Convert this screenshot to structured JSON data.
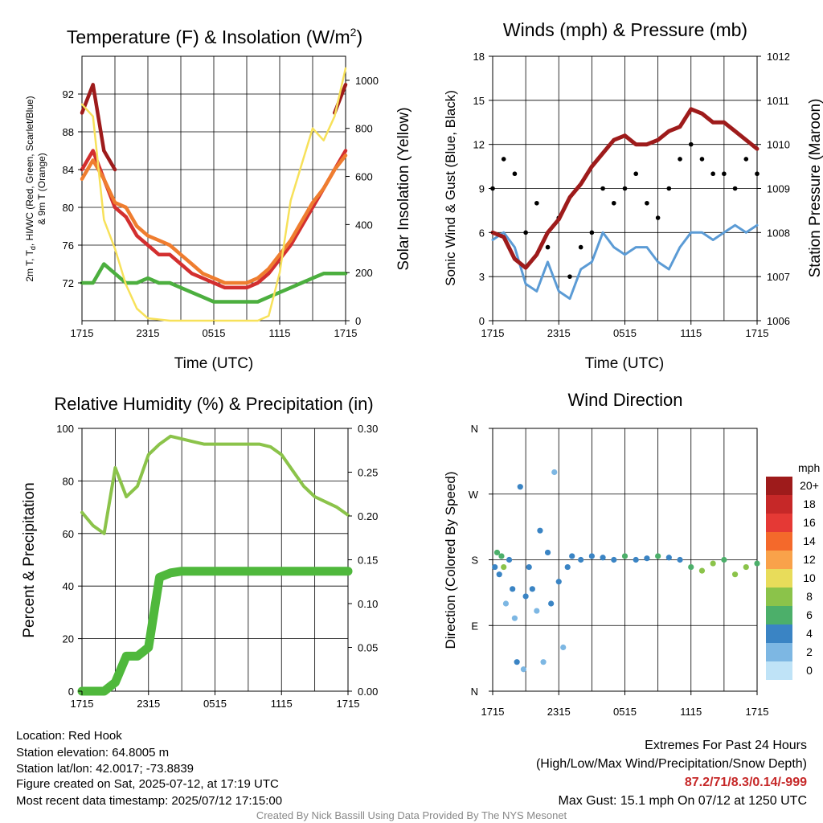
{
  "colors": {
    "maroon": "#9e1b1b",
    "red": "#d32f2f",
    "green": "#4caf3f",
    "orange": "#ef7d2f",
    "yellow": "#f7e15a",
    "blue": "#5b9bd5",
    "black": "#000000",
    "rh_green": "#8bc34a",
    "precip_green": "#4fb83c"
  },
  "x_ticks": [
    "1715",
    "2315",
    "0515",
    "1115",
    "1715"
  ],
  "temp_panel": {
    "title": "Temperature (F) & Insolation (W/m",
    "title_sup": "2",
    "title_close": ")",
    "ylabel_line1": "2m T, T",
    "ylabel_sub": "d",
    "ylabel_line1_rest": ", HI/WC (Red, Green, Scarlet/Blue)",
    "ylabel_line2": "& 9m T (Orange)",
    "y2label": "Solar Insolation (Yellow)",
    "xlabel": "Time (UTC)",
    "y_ticks": [
      "92",
      "88",
      "84",
      "80",
      "76",
      "72"
    ],
    "y2_ticks": [
      "1000",
      "800",
      "600",
      "400",
      "200",
      "0"
    ]
  },
  "wind_panel": {
    "title": "Winds (mph) & Pressure (mb)",
    "ylabel": "Sonic Wind & Gust (Blue, Black)",
    "y2label": "Station Pressure (Maroon)",
    "xlabel": "Time (UTC)",
    "y_ticks": [
      "18",
      "15",
      "12",
      "9",
      "6",
      "3",
      "0"
    ],
    "y2_ticks": [
      "1012",
      "1011",
      "1010",
      "1009",
      "1008",
      "1007",
      "1006"
    ]
  },
  "rh_panel": {
    "title": "Relative Humidity (%) & Precipitation (in)",
    "ylabel": "Percent & Precipitation",
    "y_ticks": [
      "100",
      "80",
      "60",
      "40",
      "20",
      "0"
    ],
    "y2_ticks": [
      "0.30",
      "0.25",
      "0.20",
      "0.15",
      "0.10",
      "0.05",
      "0.00"
    ]
  },
  "dir_panel": {
    "title": "Wind Direction",
    "ylabel": "Direction (Colored By Speed)",
    "y_ticks": [
      "N",
      "W",
      "S",
      "E",
      "N"
    ],
    "legend_title": "mph",
    "legend_labels": [
      "20+",
      "18",
      "16",
      "14",
      "12",
      "10",
      "8",
      "6",
      "4",
      "2",
      "0"
    ],
    "legend_colors": [
      "#9e1b1b",
      "#c62828",
      "#e53935",
      "#f4692b",
      "#f9a24a",
      "#e8dc5a",
      "#8bc34a",
      "#4caf6a",
      "#3a84c4",
      "#7db7e3",
      "#bfe3f7"
    ]
  },
  "footer": {
    "location": "Location: Red Hook",
    "elevation": "Station elevation: 64.8005 m",
    "latlon": "Station lat/lon: 42.0017; -73.8839",
    "created": "Figure created on Sat, 2025-07-12, at 17:19 UTC",
    "recent": "Most recent data timestamp: 2025/07/12 17:15:00",
    "extremes_title": "Extremes For Past 24 Hours",
    "extremes_sub": "(High/Low/Max Wind/Precipitation/Snow Depth)",
    "extremes_values": "87.2/71/8.3/0.14/-999",
    "max_gust": "Max Gust: 15.1 mph On 07/12 at 1250 UTC",
    "credit": "Created By Nick Bassill Using Data Provided By The NYS Mesonet"
  },
  "chart_data": [
    {
      "type": "line",
      "title": "Temperature (F) & Insolation (W/m2)",
      "xlabel": "Time (UTC)",
      "x_hours": [
        0,
        1,
        2,
        3,
        4,
        5,
        6,
        7,
        8,
        9,
        10,
        11,
        12,
        13,
        14,
        15,
        16,
        17,
        18,
        19,
        20,
        21,
        22,
        23,
        24
      ],
      "ylim": [
        68,
        96
      ],
      "y2lim": [
        0,
        1100
      ],
      "series": [
        {
          "name": "2m T",
          "color": "red",
          "values": [
            84,
            86,
            83,
            80,
            79,
            77,
            76,
            75,
            75,
            74,
            73,
            72.5,
            72,
            71.5,
            71.5,
            71.5,
            72,
            73,
            74.5,
            76,
            78,
            80,
            82,
            84,
            86
          ]
        },
        {
          "name": "HI/WC",
          "color": "maroon",
          "values": [
            90,
            93,
            86,
            84,
            null,
            null,
            null,
            null,
            null,
            null,
            null,
            null,
            null,
            null,
            null,
            null,
            null,
            null,
            null,
            null,
            null,
            null,
            null,
            90,
            93
          ]
        },
        {
          "name": "Td",
          "color": "green",
          "values": [
            72,
            72,
            74,
            73,
            72,
            72,
            72.5,
            72,
            72,
            71.5,
            71,
            70.5,
            70,
            70,
            70,
            70,
            70,
            70.5,
            71,
            71.5,
            72,
            72.5,
            73,
            73,
            73
          ]
        },
        {
          "name": "9m T",
          "color": "orange",
          "values": [
            83,
            85,
            83,
            80.5,
            80,
            78,
            77,
            76.5,
            76,
            75,
            74,
            73,
            72.5,
            72,
            72,
            72,
            72.5,
            73.5,
            75,
            76.5,
            78.5,
            80.5,
            82,
            84,
            85.5
          ]
        },
        {
          "name": "Insolation",
          "color": "yellow",
          "axis": "y2",
          "values": [
            900,
            850,
            420,
            300,
            150,
            50,
            10,
            5,
            0,
            0,
            0,
            0,
            0,
            0,
            0,
            0,
            0,
            20,
            200,
            500,
            650,
            800,
            750,
            850,
            1050
          ]
        }
      ]
    },
    {
      "type": "line",
      "title": "Winds (mph) & Pressure (mb)",
      "xlabel": "Time (UTC)",
      "x_hours": [
        0,
        1,
        2,
        3,
        4,
        5,
        6,
        7,
        8,
        9,
        10,
        11,
        12,
        13,
        14,
        15,
        16,
        17,
        18,
        19,
        20,
        21,
        22,
        23,
        24
      ],
      "ylim": [
        0,
        18
      ],
      "y2lim": [
        1006,
        1012
      ],
      "series": [
        {
          "name": "Sonic Wind",
          "color": "blue",
          "values": [
            5.5,
            6,
            5,
            2.5,
            2,
            4,
            2,
            1.5,
            3.5,
            4,
            6,
            5,
            4.5,
            5,
            5,
            4,
            3.5,
            5,
            6,
            6,
            5.5,
            6,
            6.5,
            6,
            6.5
          ]
        },
        {
          "name": "Gust",
          "color": "black",
          "values": [
            9,
            11,
            10,
            6,
            8,
            5,
            7,
            3,
            5,
            6,
            9,
            8,
            9,
            10,
            8,
            7,
            9,
            11,
            12,
            11,
            10,
            10,
            9,
            11,
            10
          ]
        },
        {
          "name": "Station Pressure",
          "color": "maroon",
          "axis": "y2",
          "values": [
            1008,
            1007.9,
            1007.4,
            1007.2,
            1007.5,
            1008,
            1008.3,
            1008.8,
            1009.1,
            1009.5,
            1009.8,
            1010.1,
            1010.2,
            1010.0,
            1010.0,
            1010.1,
            1010.3,
            1010.4,
            1010.8,
            1010.7,
            1010.5,
            1010.5,
            1010.3,
            1010.1,
            1009.9
          ]
        }
      ]
    },
    {
      "type": "line",
      "title": "Relative Humidity (%) & Precipitation (in)",
      "x_hours": [
        0,
        1,
        2,
        3,
        4,
        5,
        6,
        7,
        8,
        9,
        10,
        11,
        12,
        13,
        14,
        15,
        16,
        17,
        18,
        19,
        20,
        21,
        22,
        23,
        24
      ],
      "ylim": [
        0,
        100
      ],
      "y2lim": [
        0,
        0.3
      ],
      "series": [
        {
          "name": "RH",
          "color": "rh_green",
          "values": [
            68,
            63,
            60,
            85,
            74,
            78,
            90,
            94,
            97,
            96,
            95,
            94,
            94,
            94,
            94,
            94,
            94,
            93,
            90,
            84,
            78,
            74,
            72,
            70,
            67
          ]
        },
        {
          "name": "Precipitation",
          "color": "precip_green",
          "axis": "y2",
          "values": [
            0,
            0,
            0,
            0.01,
            0.04,
            0.04,
            0.05,
            0.13,
            0.135,
            0.137,
            0.137,
            0.137,
            0.137,
            0.137,
            0.137,
            0.137,
            0.137,
            0.137,
            0.137,
            0.137,
            0.137,
            0.137,
            0.137,
            0.137,
            0.137
          ]
        }
      ]
    },
    {
      "type": "scatter",
      "title": "Wind Direction",
      "ylabel": "Direction (Colored By Speed)",
      "y_categories": [
        "N",
        "W",
        "S",
        "E",
        "N"
      ],
      "ylim": [
        360,
        0
      ],
      "points_hours": [
        0.2,
        0.4,
        0.6,
        0.8,
        1.0,
        1.2,
        1.5,
        1.8,
        2.0,
        2.2,
        2.5,
        2.8,
        3.0,
        3.3,
        3.6,
        4.0,
        4.3,
        4.6,
        5.0,
        5.3,
        5.6,
        6.0,
        6.4,
        6.8,
        7.2,
        8,
        9,
        10,
        11,
        12,
        13,
        14,
        15,
        16,
        17,
        18,
        19,
        20,
        21,
        22,
        23,
        24
      ],
      "points_dir": [
        170,
        190,
        160,
        185,
        170,
        120,
        180,
        140,
        100,
        40,
        280,
        30,
        130,
        170,
        140,
        110,
        220,
        40,
        190,
        120,
        300,
        150,
        60,
        170,
        185,
        180,
        185,
        183,
        180,
        185,
        180,
        182,
        185,
        183,
        180,
        170,
        165,
        175,
        180,
        160,
        170,
        175
      ],
      "points_speed": [
        3,
        6,
        4,
        5,
        7,
        2,
        4,
        3,
        1,
        3,
        3,
        1,
        3,
        4,
        4,
        2,
        3,
        1,
        3,
        4,
        1,
        3,
        2,
        4,
        4,
        4,
        4,
        4,
        4,
        6,
        4,
        4,
        6,
        4,
        4,
        6,
        7,
        8,
        6,
        7,
        8,
        6
      ]
    }
  ]
}
